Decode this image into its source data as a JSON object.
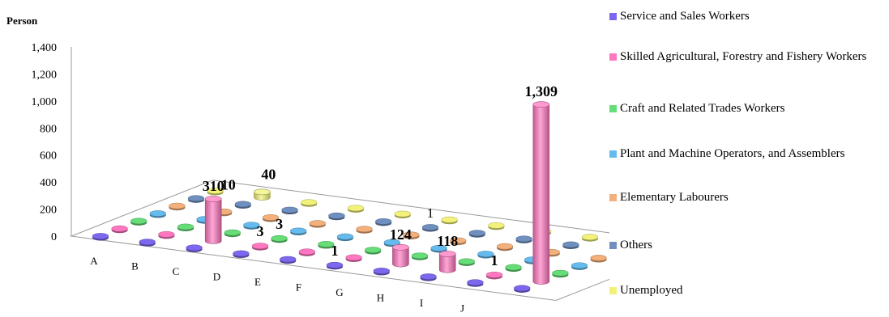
{
  "chart_data": {
    "type": "bar",
    "style": "3d-cylinder",
    "ylabel": "Person",
    "ylim": [
      0,
      1400
    ],
    "yticks": [
      "0",
      "200",
      "400",
      "600",
      "800",
      "1,000",
      "1,200",
      "1,400"
    ],
    "ytick_values": [
      0,
      200,
      400,
      600,
      800,
      1000,
      1200,
      1400
    ],
    "categories": [
      "A",
      "B",
      "C",
      "D",
      "E",
      "F",
      "G",
      "H",
      "I",
      "J"
    ],
    "legend_position": "right",
    "grid": false,
    "series": [
      {
        "name": "Service and Sales Workers",
        "color": "#7b68ee",
        "values": [
          0,
          0,
          0,
          0,
          0,
          1,
          0,
          0,
          0,
          0
        ],
        "labels": [
          "",
          "",
          "",
          "",
          "",
          "1",
          "",
          "",
          "",
          ""
        ]
      },
      {
        "name": "Skilled Agricultural, Forestry and Fishery Workers",
        "color": "#ff77c0",
        "values": [
          0,
          0,
          310,
          3,
          0,
          0,
          124,
          118,
          1,
          1309
        ],
        "labels": [
          "",
          "",
          "310",
          "3",
          "",
          "",
          "124",
          "118",
          "1",
          "1,309"
        ]
      },
      {
        "name": "Craft and Related Trades Workers",
        "color": "#66dd77",
        "values": [
          0,
          0,
          0,
          3,
          0,
          0,
          0,
          0,
          0,
          0
        ],
        "labels": [
          "",
          "",
          "",
          "3",
          "",
          "",
          "",
          "",
          "",
          ""
        ]
      },
      {
        "name": "Plant and Machine Operators, and Assemblers",
        "color": "#66bbee",
        "values": [
          0,
          0,
          0,
          0,
          0,
          0,
          0,
          0,
          0,
          0
        ],
        "labels": [
          "",
          "",
          "",
          "",
          "",
          "",
          "",
          "",
          "",
          ""
        ]
      },
      {
        "name": "Elementary Labourers",
        "color": "#f4b07a",
        "values": [
          0,
          0,
          0,
          0,
          0,
          0,
          0,
          0,
          0,
          0
        ],
        "labels": [
          "",
          "",
          "",
          "",
          "",
          "",
          "",
          "",
          "",
          ""
        ]
      },
      {
        "name": "Others",
        "color": "#6f8fbf",
        "values": [
          0,
          10,
          0,
          0,
          0,
          1,
          0,
          0,
          0,
          0
        ],
        "labels": [
          "",
          "10",
          "",
          "",
          "",
          "1",
          "",
          "",
          "",
          ""
        ]
      },
      {
        "name": "Unemployed",
        "color": "#f2f27a",
        "values": [
          0,
          40,
          0,
          0,
          0,
          0,
          0,
          0,
          0,
          0
        ],
        "labels": [
          "",
          "40",
          "",
          "",
          "",
          "",
          "",
          "",
          "",
          ""
        ]
      }
    ]
  }
}
